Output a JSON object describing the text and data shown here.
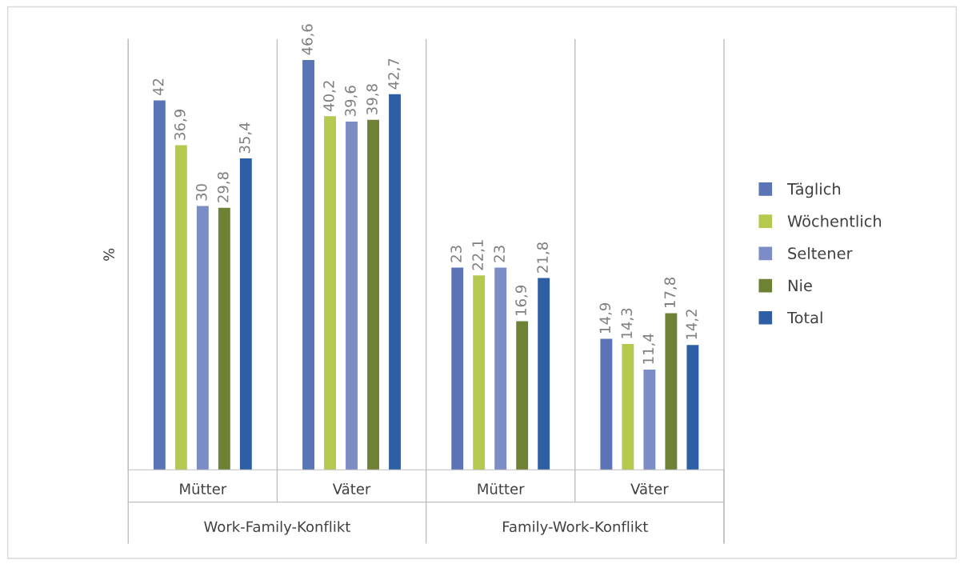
{
  "chart_data": {
    "type": "bar",
    "ylabel": "%",
    "categories": [
      "Mütter",
      "Väter",
      "Mütter",
      "Väter"
    ],
    "series": [
      {
        "name": "Täglich",
        "color": "#5b74b5",
        "values": [
          42,
          46.6,
          23,
          14.9
        ],
        "value_labels": [
          "42",
          "46,6",
          "23",
          "14,9"
        ]
      },
      {
        "name": "Wöchentlich",
        "color": "#b5c84f",
        "values": [
          36.9,
          40.2,
          22.1,
          14.3
        ],
        "value_labels": [
          "36,9",
          "40,2",
          "22,1",
          "14,3"
        ]
      },
      {
        "name": "Seltener",
        "color": "#7b8dc4",
        "values": [
          30,
          39.6,
          23,
          11.4
        ],
        "value_labels": [
          "30",
          "39,6",
          "23",
          "11,4"
        ]
      },
      {
        "name": "Nie",
        "color": "#6e8135",
        "values": [
          29.8,
          39.8,
          16.9,
          17.8
        ],
        "value_labels": [
          "29,8",
          "39,8",
          "16,9",
          "17,8"
        ]
      },
      {
        "name": "Total",
        "color": "#2e5fa4",
        "values": [
          35.4,
          42.7,
          21.8,
          14.2
        ],
        "value_labels": [
          "35,4",
          "42,7",
          "21,8",
          "14,2"
        ]
      }
    ],
    "annotations": [
      "Work-Family-Konflikt",
      "Family-Work-Konflikt"
    ],
    "legend": "right",
    "grid": false
  }
}
